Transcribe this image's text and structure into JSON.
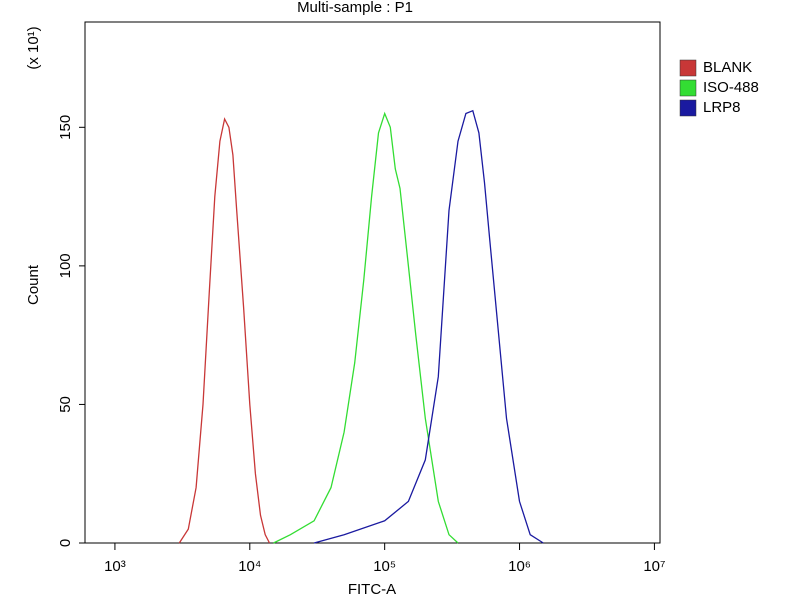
{
  "chart_data": {
    "type": "histogram-overlay",
    "title": "Multi-sample : P1",
    "x_label": "FITC-A",
    "y_label": "Count",
    "y_multiplier": "(x 10¹)",
    "xscale": "log",
    "xlim": [
      600,
      11000000
    ],
    "xticks": [
      {
        "value": 1000,
        "label": "10³"
      },
      {
        "value": 10000,
        "label": "10⁴"
      },
      {
        "value": 100000,
        "label": "10⁵"
      },
      {
        "value": 1000000,
        "label": "10⁶"
      },
      {
        "value": 10000000,
        "label": "10⁷"
      }
    ],
    "ylim": [
      0,
      188
    ],
    "yticks": [
      0,
      50,
      100,
      150
    ],
    "legend": "right",
    "series": [
      {
        "name": "BLANK",
        "color": "#c83737",
        "x": [
          3000,
          3500,
          4000,
          4500,
          5000,
          5500,
          6000,
          6500,
          7000,
          7500,
          8000,
          9000,
          10000,
          11000,
          12000,
          13000,
          14000
        ],
        "values": [
          0,
          5,
          20,
          50,
          90,
          125,
          145,
          153,
          150,
          140,
          120,
          85,
          50,
          25,
          10,
          3,
          0
        ]
      },
      {
        "name": "ISO-488",
        "color": "#33dd33",
        "x": [
          15000,
          20000,
          30000,
          40000,
          50000,
          60000,
          70000,
          80000,
          90000,
          100000,
          110000,
          120000,
          130000,
          150000,
          170000,
          200000,
          250000,
          300000,
          350000
        ],
        "values": [
          0,
          3,
          8,
          20,
          40,
          65,
          95,
          125,
          148,
          155,
          150,
          135,
          128,
          100,
          75,
          45,
          15,
          3,
          0
        ]
      },
      {
        "name": "LRP8",
        "color": "#1a1aa0",
        "x": [
          30000,
          50000,
          100000,
          150000,
          200000,
          250000,
          300000,
          350000,
          400000,
          450000,
          500000,
          550000,
          600000,
          700000,
          800000,
          1000000,
          1200000,
          1500000
        ],
        "values": [
          0,
          3,
          8,
          15,
          30,
          60,
          120,
          145,
          155,
          156,
          148,
          130,
          110,
          75,
          45,
          15,
          3,
          0
        ]
      }
    ]
  }
}
